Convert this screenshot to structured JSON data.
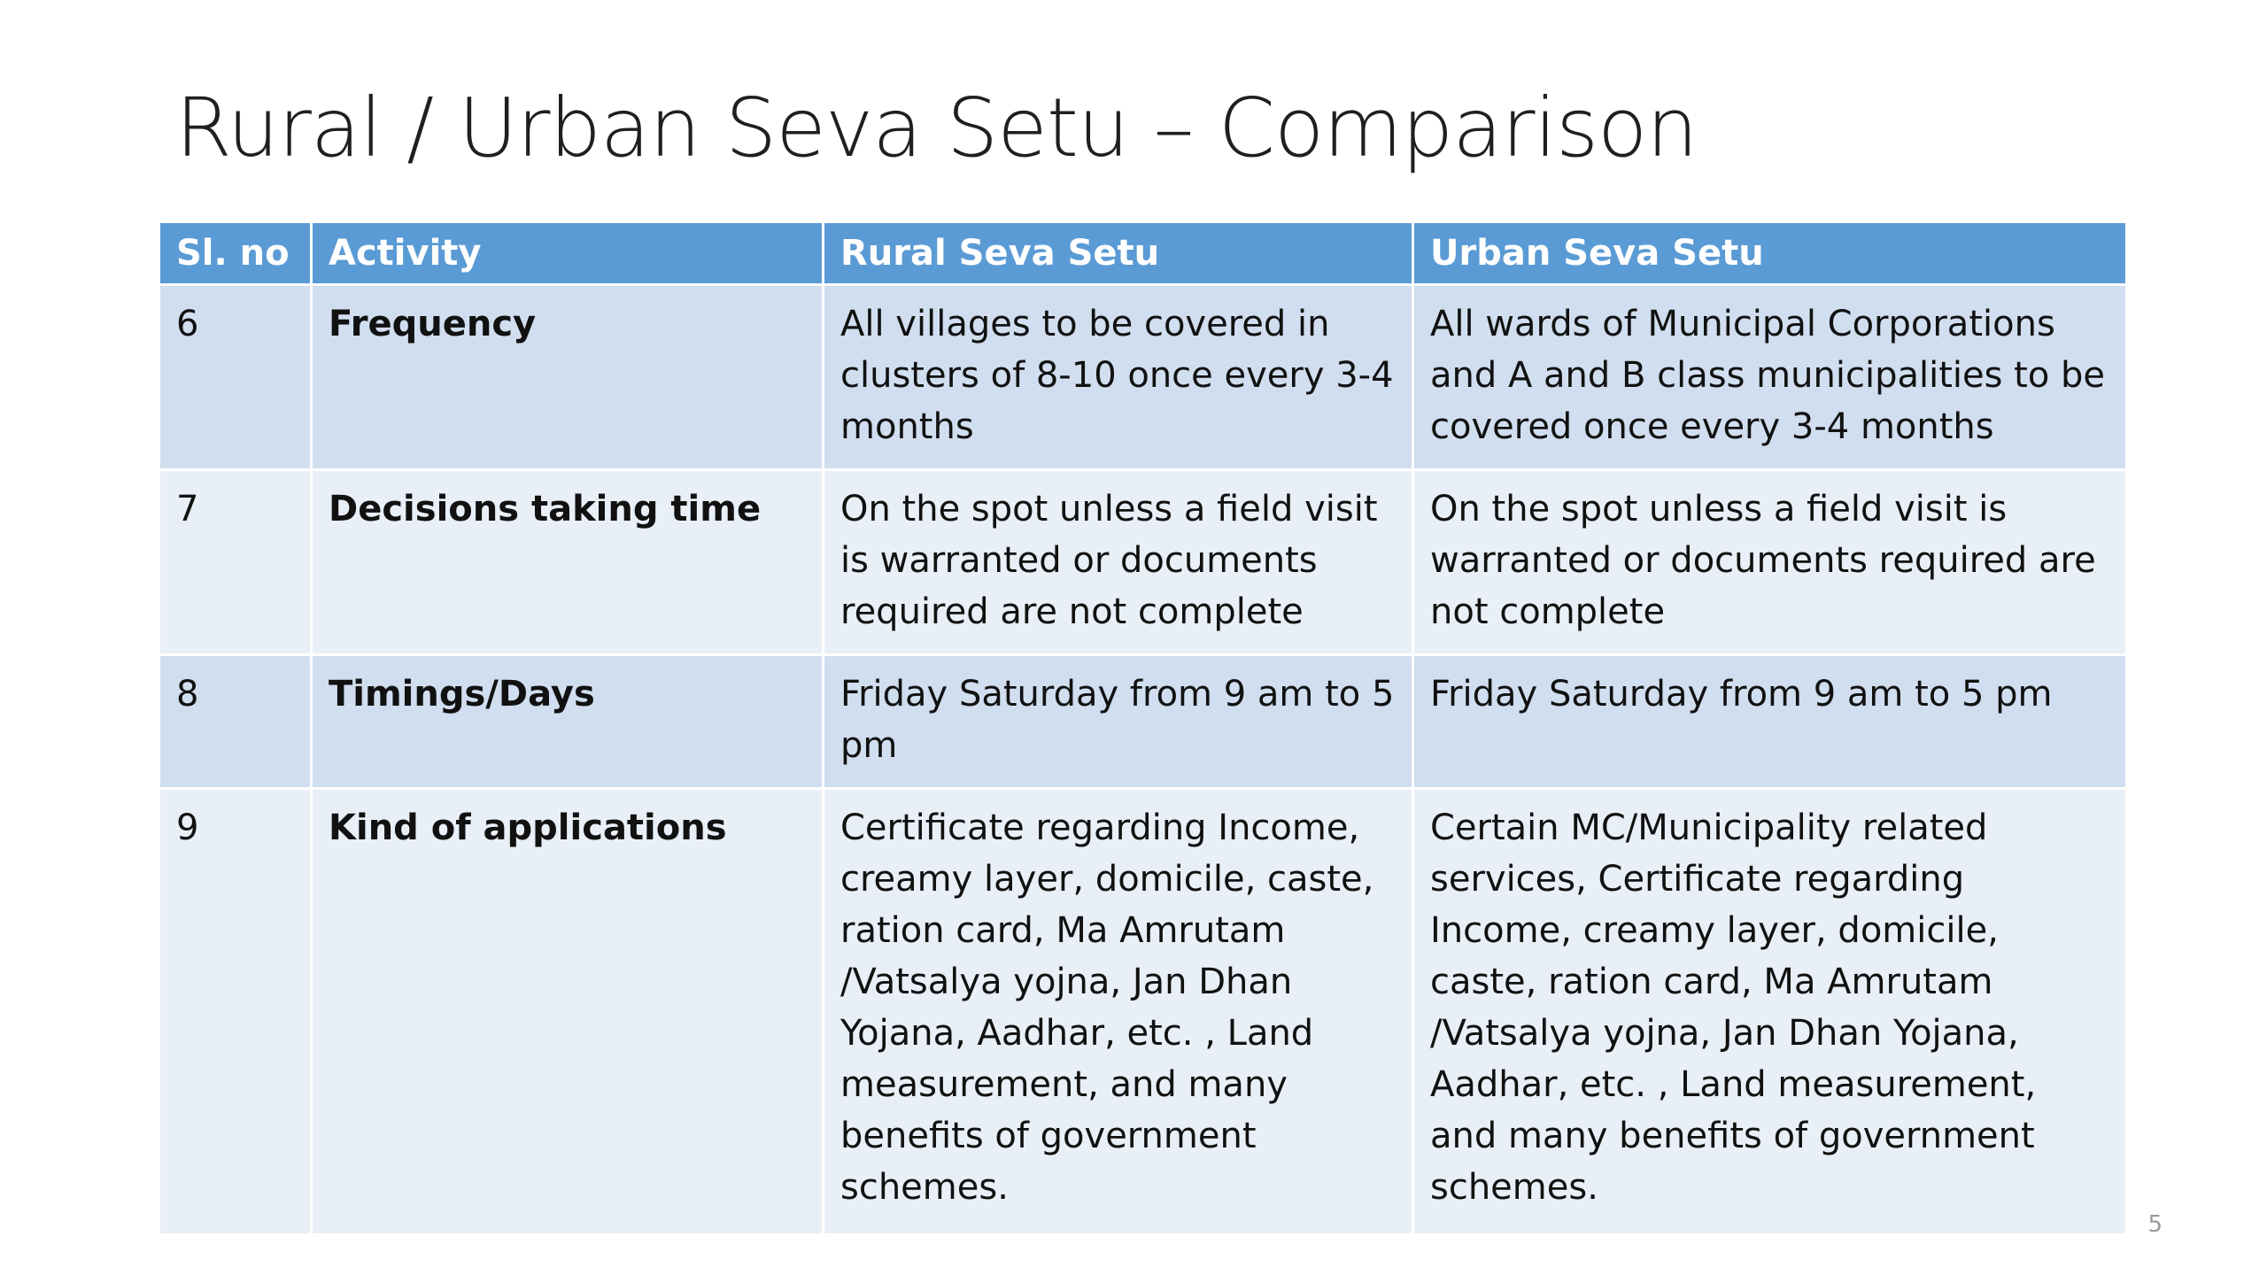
{
  "slide": {
    "title": "Rural / Urban Seva Setu – Comparison",
    "page_number": "5"
  },
  "table": {
    "headers": [
      "Sl. no",
      "Activity",
      "Rural Seva Setu",
      "Urban Seva Setu"
    ],
    "rows": [
      {
        "sl_no": "6",
        "activity": "Frequency",
        "rural": "All villages to be covered in clusters of 8-10  once every 3-4 months",
        "urban": "All wards of Municipal Corporations and A and B class municipalities to be covered once every 3-4 months"
      },
      {
        "sl_no": "7",
        "activity": "Decisions taking time",
        "rural": "On the spot unless a field visit is warranted or documents required are not complete",
        "urban": "On the spot unless a field visit is warranted or documents required are not complete"
      },
      {
        "sl_no": "8",
        "activity": "Timings/Days",
        "rural": "Friday Saturday from 9 am to 5 pm",
        "urban": "Friday Saturday from 9 am to 5 pm"
      },
      {
        "sl_no": "9",
        "activity": "Kind of applications",
        "rural": "Certificate regarding Income, creamy layer, domicile,  caste, ration card, Ma Amrutam /Vatsalya yojna, Jan Dhan Yojana, Aadhar, etc. , Land measurement, and many benefits of government schemes.",
        "urban": "Certain MC/Municipality related services, Certificate regarding Income, creamy layer, domicile,  caste, ration card, Ma Amrutam /Vatsalya yojna, Jan Dhan Yojana, Aadhar, etc. , Land measurement, and many benefits of government schemes."
      }
    ]
  },
  "colors": {
    "header_bg": "#5b9bd5",
    "row_odd_bg": "#d0deef",
    "row_even_bg": "#e9eff7",
    "title_text": "#1f1f1f"
  }
}
